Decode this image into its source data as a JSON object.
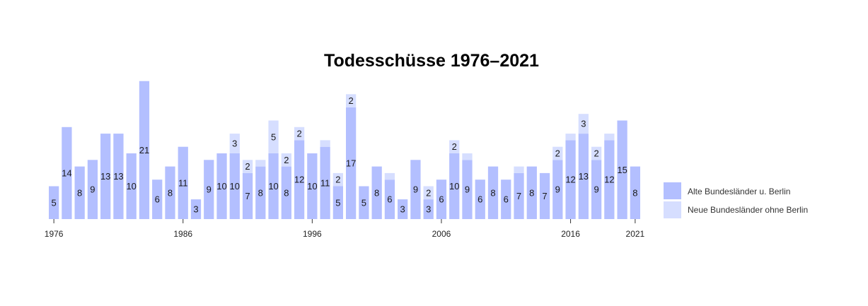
{
  "colors": {
    "alte": "#b3bfff",
    "neue": "#d6deff",
    "axis": "#333333",
    "text": "#1a1a1a"
  },
  "chart_data": {
    "type": "bar",
    "stacked": true,
    "title": "Todesschüsse 1976–2021",
    "xlabel": "",
    "ylabel": "",
    "ylim": [
      0,
      22
    ],
    "grid": false,
    "legend_position": "right",
    "x": [
      1976,
      1977,
      1978,
      1979,
      1980,
      1981,
      1982,
      1983,
      1984,
      1985,
      1986,
      1987,
      1988,
      1989,
      1990,
      1991,
      1992,
      1993,
      1994,
      1995,
      1996,
      1997,
      1998,
      1999,
      2000,
      2001,
      2002,
      2003,
      2004,
      2005,
      2006,
      2007,
      2008,
      2009,
      2010,
      2011,
      2012,
      2013,
      2014,
      2015,
      2016,
      2017,
      2018,
      2019,
      2020,
      2021
    ],
    "x_ticks": [
      "1976",
      "1986",
      "1996",
      "2006",
      "2016",
      "2021"
    ],
    "series": [
      {
        "name": "Alte Bundesländer u. Berlin",
        "color": "#b3bfff",
        "values": [
          5,
          14,
          8,
          9,
          13,
          13,
          10,
          21,
          6,
          8,
          11,
          3,
          9,
          10,
          10,
          7,
          8,
          10,
          8,
          12,
          10,
          11,
          5,
          17,
          5,
          8,
          6,
          3,
          9,
          3,
          6,
          10,
          9,
          6,
          8,
          6,
          7,
          8,
          7,
          9,
          12,
          13,
          9,
          12,
          15,
          8
        ],
        "labels": [
          "5",
          "14",
          "8",
          "9",
          "13",
          "13",
          "10",
          "21",
          "6",
          "8",
          "11",
          "3",
          "9",
          "10",
          "10",
          "7",
          "8",
          "10",
          "8",
          "12",
          "10",
          "11",
          "5",
          "17",
          "5",
          "8",
          "6",
          "3",
          "9",
          "3",
          "6",
          "10",
          "9",
          "6",
          "8",
          "6",
          "7",
          "8",
          "7",
          "9",
          "12",
          "13",
          "9",
          "12",
          "15",
          "8"
        ]
      },
      {
        "name": "Neue Bundesländer ohne Berlin",
        "color": "#d6deff",
        "values": [
          0,
          0,
          0,
          0,
          0,
          0,
          0,
          0,
          0,
          0,
          0,
          0,
          0,
          0,
          3,
          2,
          1,
          5,
          2,
          2,
          0,
          1,
          2,
          2,
          0,
          0,
          1,
          0,
          0,
          2,
          0,
          2,
          1,
          0,
          0,
          0,
          1,
          0,
          0,
          2,
          1,
          3,
          2,
          1,
          0,
          0
        ],
        "labels": [
          "",
          "",
          "",
          "",
          "",
          "",
          "",
          "",
          "",
          "",
          "",
          "",
          "",
          "",
          "3",
          "2",
          "",
          "5",
          "2",
          "2",
          "",
          "",
          "2",
          "2",
          "",
          "",
          "",
          "",
          "",
          "2",
          "",
          "2",
          "",
          "",
          "",
          "",
          "",
          "",
          "",
          "2",
          "",
          "3",
          "2",
          "",
          "",
          ""
        ]
      }
    ]
  }
}
